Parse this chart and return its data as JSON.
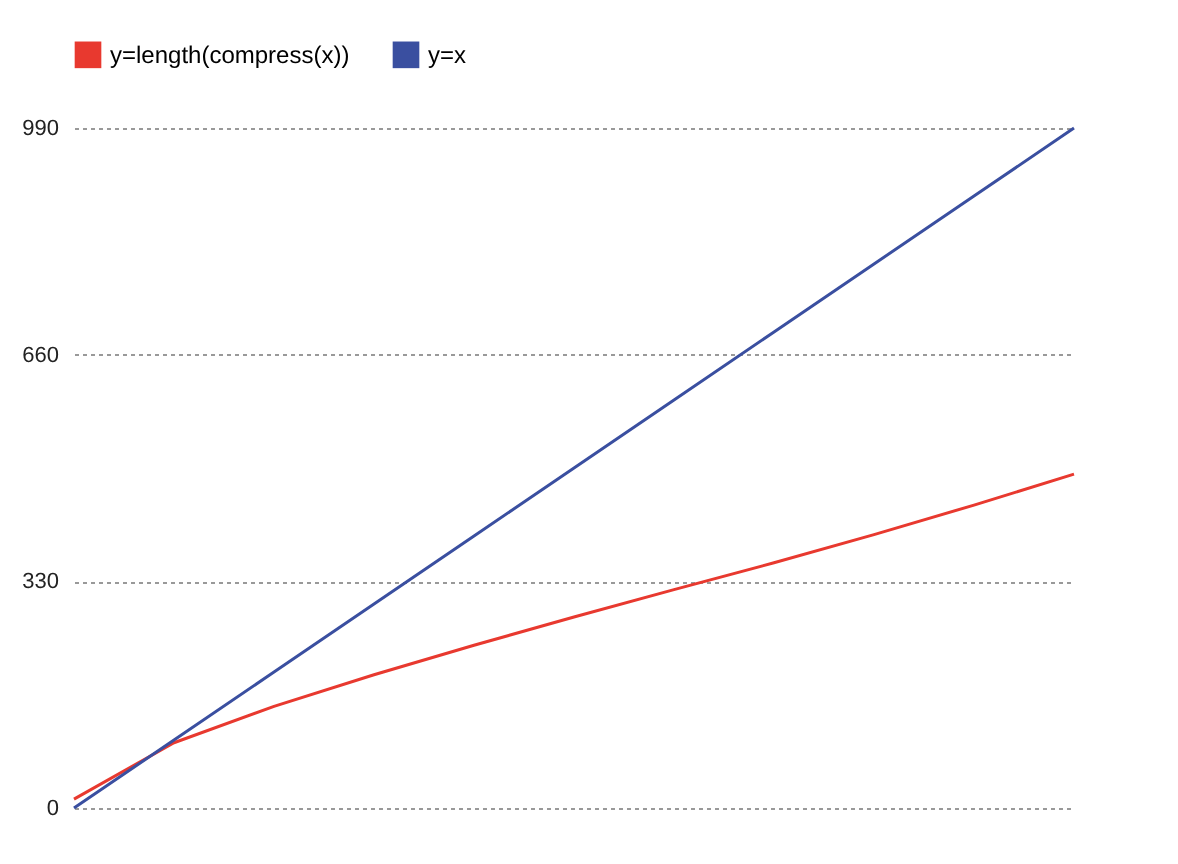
{
  "chart_data": {
    "type": "line",
    "categories": [
      null,
      null,
      null,
      null,
      null,
      null,
      null,
      null,
      null,
      null,
      null
    ],
    "series": [
      {
        "name": "y=length(compress(x))",
        "color": "#e8392f",
        "values": [
          13,
          95,
          148,
          194,
          237,
          278,
          318,
          357,
          398,
          441,
          486
        ]
      },
      {
        "name": "y=x",
        "color": "#3a4fa0",
        "values": [
          0,
          99,
          198,
          297,
          396,
          495,
          594,
          693,
          792,
          891,
          990
        ]
      }
    ],
    "ylim": [
      0,
      990
    ],
    "yticks": [
      0,
      330,
      660,
      990
    ],
    "grid": "y",
    "line_style": "solid",
    "legend": "top",
    "tick_labels": "y"
  }
}
